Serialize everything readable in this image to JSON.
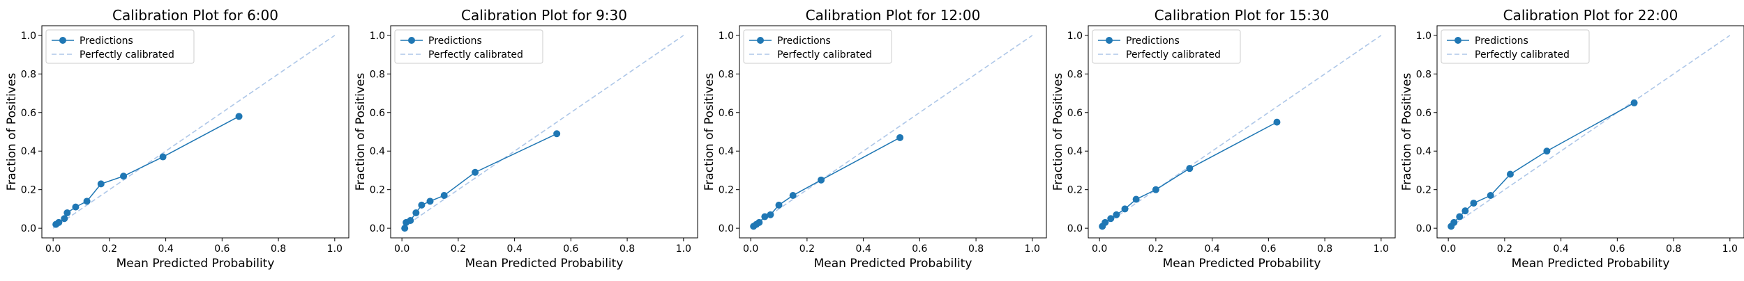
{
  "colors": {
    "predictions": "#1f77b4",
    "perfect": "#aec7e8"
  },
  "chart_data": [
    {
      "type": "line",
      "title": "Calibration Plot for 6:00",
      "xlabel": "Mean Predicted Probability",
      "ylabel": "Fraction of Positives",
      "xlim": [
        -0.04,
        1.05
      ],
      "ylim": [
        -0.05,
        1.05
      ],
      "xticks": [
        "0.0",
        "0.2",
        "0.4",
        "0.6",
        "0.8",
        "1.0"
      ],
      "yticks": [
        "0.0",
        "0.2",
        "0.4",
        "0.6",
        "0.8",
        "1.0"
      ],
      "legend": [
        "Predictions",
        "Perfectly calibrated"
      ],
      "legend_position": "top-left",
      "series": [
        {
          "name": "Predictions",
          "x": [
            0.01,
            0.02,
            0.04,
            0.05,
            0.08,
            0.12,
            0.17,
            0.25,
            0.39,
            0.66
          ],
          "y": [
            0.02,
            0.03,
            0.05,
            0.08,
            0.11,
            0.14,
            0.23,
            0.27,
            0.37,
            0.58
          ]
        },
        {
          "name": "Perfectly calibrated",
          "x": [
            0,
            1
          ],
          "y": [
            0,
            1
          ]
        }
      ]
    },
    {
      "type": "line",
      "title": "Calibration Plot for 9:30",
      "xlabel": "Mean Predicted Probability",
      "ylabel": "Fraction of Positives",
      "xlim": [
        -0.04,
        1.05
      ],
      "ylim": [
        -0.05,
        1.05
      ],
      "xticks": [
        "0.0",
        "0.2",
        "0.4",
        "0.6",
        "0.8",
        "1.0"
      ],
      "yticks": [
        "0.0",
        "0.2",
        "0.4",
        "0.6",
        "0.8",
        "1.0"
      ],
      "legend": [
        "Predictions",
        "Perfectly calibrated"
      ],
      "legend_position": "top-left",
      "series": [
        {
          "name": "Predictions",
          "x": [
            0.01,
            0.015,
            0.03,
            0.05,
            0.07,
            0.1,
            0.15,
            0.26,
            0.55
          ],
          "y": [
            0.0,
            0.03,
            0.04,
            0.08,
            0.12,
            0.14,
            0.17,
            0.29,
            0.49
          ]
        },
        {
          "name": "Perfectly calibrated",
          "x": [
            0,
            1
          ],
          "y": [
            0,
            1
          ]
        }
      ]
    },
    {
      "type": "line",
      "title": "Calibration Plot for 12:00",
      "xlabel": "Mean Predicted Probability",
      "ylabel": "Fraction of Positives",
      "xlim": [
        -0.04,
        1.05
      ],
      "ylim": [
        -0.05,
        1.05
      ],
      "xticks": [
        "0.0",
        "0.2",
        "0.4",
        "0.6",
        "0.8",
        "1.0"
      ],
      "yticks": [
        "0.0",
        "0.2",
        "0.4",
        "0.6",
        "0.8",
        "1.0"
      ],
      "legend": [
        "Predictions",
        "Perfectly calibrated"
      ],
      "legend_position": "top-left",
      "series": [
        {
          "name": "Predictions",
          "x": [
            0.01,
            0.02,
            0.03,
            0.05,
            0.07,
            0.1,
            0.15,
            0.25,
            0.53
          ],
          "y": [
            0.01,
            0.02,
            0.03,
            0.06,
            0.07,
            0.12,
            0.17,
            0.25,
            0.47
          ]
        },
        {
          "name": "Perfectly calibrated",
          "x": [
            0,
            1
          ],
          "y": [
            0,
            1
          ]
        }
      ]
    },
    {
      "type": "line",
      "title": "Calibration Plot for 15:30",
      "xlabel": "Mean Predicted Probability",
      "ylabel": "Fraction of Positives",
      "xlim": [
        -0.04,
        1.05
      ],
      "ylim": [
        -0.05,
        1.05
      ],
      "xticks": [
        "0.0",
        "0.2",
        "0.4",
        "0.6",
        "0.8",
        "1.0"
      ],
      "yticks": [
        "0.0",
        "0.2",
        "0.4",
        "0.6",
        "0.8",
        "1.0"
      ],
      "legend": [
        "Predictions",
        "Perfectly calibrated"
      ],
      "legend_position": "top-left",
      "series": [
        {
          "name": "Predictions",
          "x": [
            0.01,
            0.02,
            0.04,
            0.06,
            0.09,
            0.13,
            0.2,
            0.32,
            0.63
          ],
          "y": [
            0.01,
            0.03,
            0.05,
            0.07,
            0.1,
            0.15,
            0.2,
            0.31,
            0.55
          ]
        },
        {
          "name": "Perfectly calibrated",
          "x": [
            0,
            1
          ],
          "y": [
            0,
            1
          ]
        }
      ]
    },
    {
      "type": "line",
      "title": "Calibration Plot for 22:00",
      "xlabel": "Mean Predicted Probability",
      "ylabel": "Fraction of Positives",
      "xlim": [
        -0.04,
        1.05
      ],
      "ylim": [
        -0.05,
        1.05
      ],
      "xticks": [
        "0.0",
        "0.2",
        "0.4",
        "0.6",
        "0.8",
        "1.0"
      ],
      "yticks": [
        "0.0",
        "0.2",
        "0.4",
        "0.6",
        "0.8",
        "1.0"
      ],
      "legend": [
        "Predictions",
        "Perfectly calibrated"
      ],
      "legend_position": "top-left",
      "series": [
        {
          "name": "Predictions",
          "x": [
            0.01,
            0.02,
            0.04,
            0.06,
            0.09,
            0.15,
            0.22,
            0.35,
            0.66
          ],
          "y": [
            0.01,
            0.03,
            0.06,
            0.09,
            0.13,
            0.17,
            0.28,
            0.4,
            0.65
          ]
        },
        {
          "name": "Perfectly calibrated",
          "x": [
            0,
            1
          ],
          "y": [
            0,
            1
          ]
        }
      ]
    }
  ]
}
